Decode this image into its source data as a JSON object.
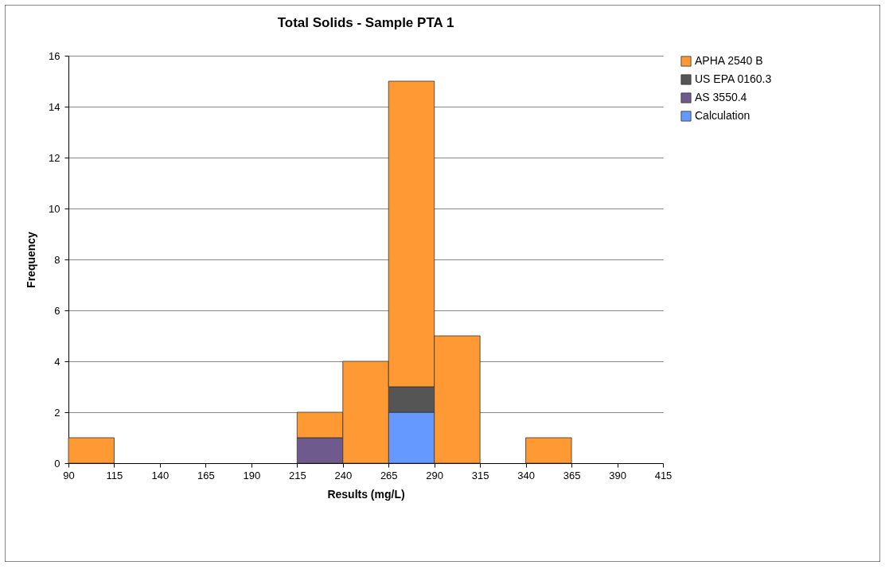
{
  "chart_data": {
    "type": "bar",
    "title": "Total Solids - Sample PTA 1",
    "xlabel": "Results (mg/L)",
    "ylabel": "Frequency",
    "x": [
      102.5,
      127.5,
      152.5,
      177.5,
      202.5,
      227.5,
      252.5,
      277.5,
      302.5,
      327.5,
      352.5
    ],
    "stacked": true,
    "series": [
      {
        "name": "Calculation",
        "color": "#6699ff",
        "values": [
          null,
          null,
          null,
          null,
          null,
          null,
          null,
          2,
          null,
          null,
          null
        ]
      },
      {
        "name": "AS 3550.4",
        "color": "#6f5a8e",
        "values": [
          null,
          null,
          null,
          null,
          null,
          1,
          null,
          null,
          null,
          null,
          null
        ]
      },
      {
        "name": "US EPA  0160.3",
        "color": "#555555",
        "values": [
          null,
          null,
          null,
          null,
          null,
          null,
          null,
          1,
          null,
          null,
          null
        ]
      },
      {
        "name": "APHA 2540 B",
        "color": "#ff9933",
        "values": [
          1,
          null,
          null,
          null,
          null,
          1,
          4,
          12,
          5,
          null,
          1
        ]
      }
    ],
    "xlim": [
      90,
      415
    ],
    "xticks": [
      90,
      115,
      140,
      165,
      190,
      215,
      240,
      265,
      290,
      315,
      340,
      365,
      390,
      415
    ],
    "ylim": [
      0,
      16
    ],
    "yticks": [
      0,
      2,
      4,
      6,
      8,
      10,
      12,
      14,
      16
    ],
    "grid": "y",
    "legend": "top right"
  }
}
